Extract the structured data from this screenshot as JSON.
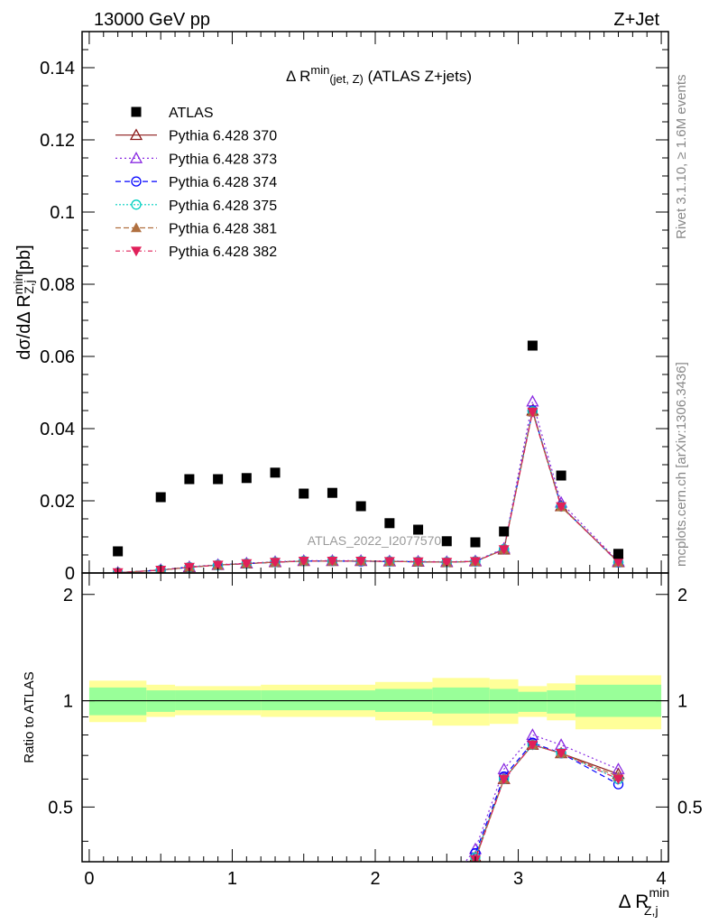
{
  "header": {
    "left": "13000 GeV pp",
    "right": "Z+Jet"
  },
  "title": {
    "pre": "Δ R",
    "sup": "min",
    "sub": "(jet, Z)",
    "post": " (ATLAS Z+jets)"
  },
  "side_labels": {
    "rivet": "Rivet 3.1.10, ≥ 1.6M events",
    "mcplots": "mcplots.cern.ch [arXiv:1306.3436]"
  },
  "watermark": "ATLAS_2022_I2077570",
  "ylabel_main": {
    "pre": "dσ/dΔ R",
    "sup": "min",
    "sub": "Z,j",
    "post": " [pb]"
  },
  "ylabel_ratio": "Ratio to ATLAS",
  "xlabel": {
    "pre": "Δ R",
    "sup": "min",
    "sub": "Z,j"
  },
  "colors": {
    "data": "#000000",
    "p370": "#8b1a1a",
    "p373": "#8a2be2",
    "p374": "#0000ff",
    "p375": "#00d0c0",
    "p381": "#b07040",
    "p382": "#e0205a",
    "band_inner": "#99ff99",
    "band_outer": "#ffff99"
  },
  "chart_data": {
    "type": "scatter",
    "x_ticks": [
      "0",
      "1",
      "2",
      "3",
      "4"
    ],
    "y_ticks_main": [
      "0",
      "0.02",
      "0.04",
      "0.06",
      "0.08",
      "0.1",
      "0.12",
      "0.14"
    ],
    "y_ticks_ratio": [
      "0.5",
      "1",
      "2"
    ],
    "xlim": [
      -0.05,
      4.05
    ],
    "ylim_main": [
      0,
      0.15
    ],
    "ylim_ratio": [
      0.35,
      2.3
    ],
    "ratio_log_scale": true,
    "legend_position": "top-left",
    "x": [
      0.2,
      0.5,
      0.7,
      0.9,
      1.1,
      1.3,
      1.5,
      1.7,
      1.9,
      2.1,
      2.3,
      2.5,
      2.7,
      2.9,
      3.1,
      3.3,
      3.7
    ],
    "data": {
      "name": "ATLAS",
      "values": [
        0.006,
        0.021,
        0.026,
        0.026,
        0.0263,
        0.0278,
        0.022,
        0.0222,
        0.0185,
        0.0138,
        0.012,
        0.0088,
        0.0085,
        0.0115,
        0.063,
        0.027,
        0.0053
      ]
    },
    "series": [
      {
        "name": "Pythia 6.428 370",
        "key": "p370",
        "marker": "triangle-up-open",
        "dash": "",
        "values": [
          0.0001,
          0.0008,
          0.0016,
          0.0022,
          0.0026,
          0.003,
          0.0033,
          0.0033,
          0.0033,
          0.0032,
          0.0031,
          0.003,
          0.0032,
          0.0065,
          0.045,
          0.0185,
          0.003
        ]
      },
      {
        "name": "Pythia 6.428 373",
        "key": "p373",
        "marker": "triangle-up-open",
        "dash": "2,3",
        "values": [
          0.0001,
          0.0009,
          0.0017,
          0.0023,
          0.0027,
          0.0031,
          0.0034,
          0.0034,
          0.0034,
          0.0033,
          0.0032,
          0.0031,
          0.0033,
          0.0068,
          0.0475,
          0.0195,
          0.0032
        ]
      },
      {
        "name": "Pythia 6.428 374",
        "key": "p374",
        "marker": "circle-open",
        "dash": "6,4",
        "values": [
          0.0001,
          0.0008,
          0.0016,
          0.0022,
          0.0026,
          0.003,
          0.0033,
          0.0033,
          0.0032,
          0.0032,
          0.0031,
          0.003,
          0.0032,
          0.0066,
          0.045,
          0.0185,
          0.0029
        ]
      },
      {
        "name": "Pythia 6.428 375",
        "key": "p375",
        "marker": "circle-open",
        "dash": "2,2",
        "values": [
          0.0001,
          0.0008,
          0.0016,
          0.0022,
          0.0026,
          0.003,
          0.0033,
          0.0033,
          0.0033,
          0.0032,
          0.0031,
          0.003,
          0.0032,
          0.0066,
          0.0448,
          0.0184,
          0.003
        ]
      },
      {
        "name": "Pythia 6.428 381",
        "key": "p381",
        "marker": "triangle-up-filled",
        "dash": "6,3",
        "values": [
          0.0001,
          0.0008,
          0.0016,
          0.0022,
          0.0026,
          0.003,
          0.0033,
          0.0033,
          0.0033,
          0.0032,
          0.0031,
          0.003,
          0.0032,
          0.0065,
          0.0446,
          0.0183,
          0.003
        ]
      },
      {
        "name": "Pythia 6.428 382",
        "key": "p382",
        "marker": "triangle-down-filled",
        "dash": "5,3,1,3",
        "values": [
          0.0001,
          0.0008,
          0.0016,
          0.0022,
          0.0026,
          0.003,
          0.0033,
          0.0033,
          0.0033,
          0.0032,
          0.0031,
          0.003,
          0.0032,
          0.0065,
          0.0446,
          0.0184,
          0.003
        ]
      }
    ],
    "ratio": {
      "reference_line": 1,
      "x": [
        2.7,
        2.9,
        3.1,
        3.3,
        3.7
      ],
      "series": {
        "p370": [
          0.36,
          0.6,
          0.75,
          0.71,
          0.62
        ],
        "p373": [
          0.38,
          0.64,
          0.8,
          0.75,
          0.64
        ],
        "p374": [
          0.37,
          0.61,
          0.76,
          0.71,
          0.58
        ],
        "p375": [
          0.36,
          0.6,
          0.75,
          0.71,
          0.6
        ],
        "p381": [
          0.355,
          0.6,
          0.75,
          0.71,
          0.61
        ],
        "p382": [
          0.355,
          0.6,
          0.75,
          0.71,
          0.6
        ]
      },
      "bins": [
        {
          "lo": 0.0,
          "hi": 0.4,
          "inner": [
            0.91,
            1.09
          ],
          "outer": [
            0.87,
            1.14
          ]
        },
        {
          "lo": 0.4,
          "hi": 0.6,
          "inner": [
            0.93,
            1.07
          ],
          "outer": [
            0.9,
            1.11
          ]
        },
        {
          "lo": 0.6,
          "hi": 1.2,
          "inner": [
            0.94,
            1.07
          ],
          "outer": [
            0.91,
            1.1
          ]
        },
        {
          "lo": 1.2,
          "hi": 2.0,
          "inner": [
            0.94,
            1.07
          ],
          "outer": [
            0.9,
            1.11
          ]
        },
        {
          "lo": 2.0,
          "hi": 2.4,
          "inner": [
            0.93,
            1.08
          ],
          "outer": [
            0.88,
            1.13
          ]
        },
        {
          "lo": 2.4,
          "hi": 2.8,
          "inner": [
            0.92,
            1.09
          ],
          "outer": [
            0.85,
            1.16
          ]
        },
        {
          "lo": 2.8,
          "hi": 3.0,
          "inner": [
            0.92,
            1.08
          ],
          "outer": [
            0.86,
            1.15
          ]
        },
        {
          "lo": 3.0,
          "hi": 3.2,
          "inner": [
            0.93,
            1.06
          ],
          "outer": [
            0.9,
            1.1
          ]
        },
        {
          "lo": 3.2,
          "hi": 3.4,
          "inner": [
            0.92,
            1.07
          ],
          "outer": [
            0.88,
            1.12
          ]
        },
        {
          "lo": 3.4,
          "hi": 4.0,
          "inner": [
            0.9,
            1.11
          ],
          "outer": [
            0.83,
            1.18
          ]
        }
      ]
    }
  }
}
